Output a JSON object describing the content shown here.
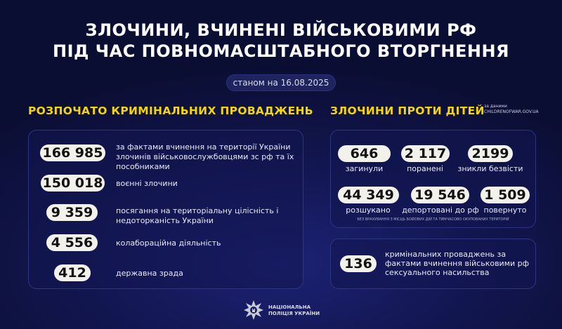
{
  "title": {
    "line1": "ЗЛОЧИНИ, ВЧИНЕНІ ВІЙСЬКОВИМИ РФ",
    "line2": "ПІД ЧАС ПОВНОМАСШТАБНОГО ВТОРГНЕННЯ"
  },
  "date": "станом на 16.08.2025",
  "criminal": {
    "heading": "РОЗПОЧАТО КРИМІНАЛЬНИХ ПРОВАДЖЕНЬ",
    "items": [
      {
        "value": "166 985",
        "label": "за фактами вчинення на території України злочинів військовослужбовцями зс рф та їх пособниками"
      },
      {
        "value": "150 018",
        "label": "воєнні злочини"
      },
      {
        "value": "9 359",
        "label": "посягання на територіальну цілісність і недоторканість України"
      },
      {
        "value": "4 556",
        "label": "колабораційна діяльність"
      },
      {
        "value": "412",
        "label": "державна зрада"
      }
    ]
  },
  "children": {
    "heading": "ЗЛОЧИНИ ПРОТИ ДІТЕЙ",
    "source_line1": "за даними",
    "source_line2": "CHILDRENOFWAR.GOV.UA",
    "stats": [
      {
        "value": "646",
        "label": "загинули"
      },
      {
        "value": "2 117",
        "label": "поранені"
      },
      {
        "value": "2199",
        "label": "зникли безвісти"
      },
      {
        "value": "44 349",
        "label": "розшукано"
      },
      {
        "value": "19 546",
        "label": "депортовані до рф"
      },
      {
        "value": "1 509",
        "label": "повернуто"
      }
    ],
    "note": "БЕЗ ВРАХУВАННЯ З МІСЦЬ БОЙОВИХ ДІЙ ТА ТИМЧАСОВО ОКУПОВАНИХ ТЕРИТОРІЙ",
    "sexual": {
      "value": "136",
      "label": "кримінальних проваджень за фактами вчинення військовими рф сексуального насильства"
    }
  },
  "footer": {
    "line1": "НАЦІОНАЛЬНА",
    "line2": "ПОЛІЦІЯ УКРАЇНИ"
  },
  "colors": {
    "accent": "#f4d60a",
    "background": "#121650"
  }
}
